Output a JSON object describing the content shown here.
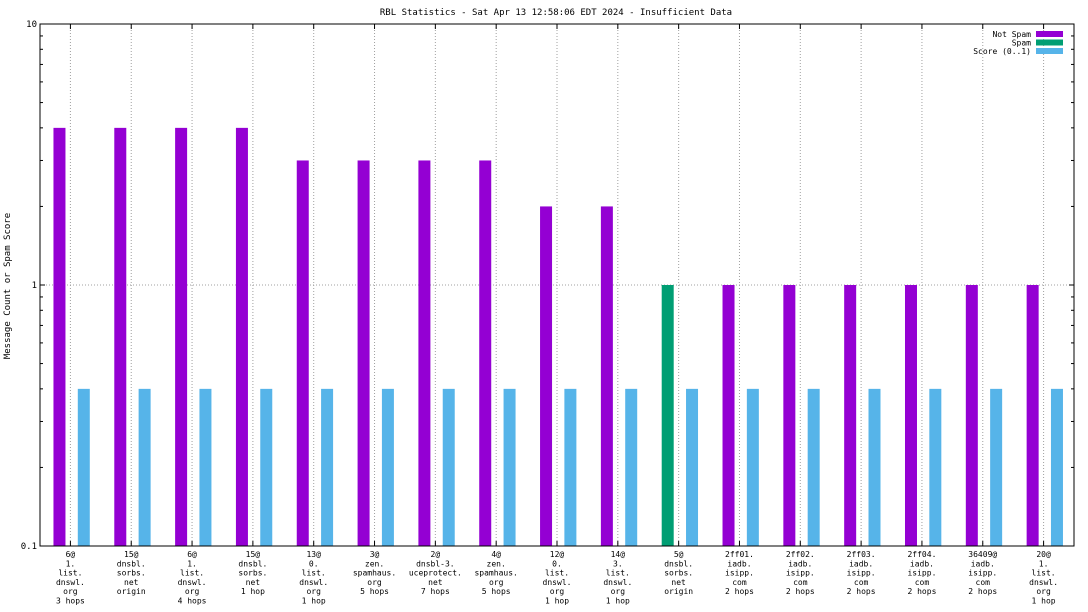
{
  "chart_data": {
    "type": "bar",
    "title": "RBL Statistics - Sat Apr 13 12:58:06 EDT 2024 - Insufficient Data",
    "xlabel": "",
    "ylabel": "Message Count or Spam Score",
    "y_scale": "log",
    "ylim": [
      0.1,
      10
    ],
    "y_ticks": [
      "10",
      "1",
      "0.1"
    ],
    "grid": true,
    "legend_position": "top-right",
    "categories": [
      [
        "6@",
        "1.",
        "list.",
        "dnswl.",
        "org",
        "3 hops"
      ],
      [
        "15@",
        "dnsbl.",
        "sorbs.",
        "net",
        "origin"
      ],
      [
        "6@",
        "1.",
        "list.",
        "dnswl.",
        "org",
        "4 hops"
      ],
      [
        "15@",
        "dnsbl.",
        "sorbs.",
        "net",
        "1 hop"
      ],
      [
        "13@",
        "0.",
        "list.",
        "dnswl.",
        "org",
        "1 hop"
      ],
      [
        "3@",
        "zen.",
        "spamhaus.",
        "org",
        "5 hops"
      ],
      [
        "2@",
        "dnsbl-3.",
        "uceprotect.",
        "net",
        "7 hops"
      ],
      [
        "4@",
        "zen.",
        "spamhaus.",
        "org",
        "5 hops"
      ],
      [
        "12@",
        "0.",
        "list.",
        "dnswl.",
        "org",
        "1 hop"
      ],
      [
        "14@",
        "3.",
        "list.",
        "dnswl.",
        "org",
        "1 hop"
      ],
      [
        "5@",
        "dnsbl.",
        "sorbs.",
        "net",
        "origin"
      ],
      [
        "2ff01.",
        "iadb.",
        "isipp.",
        "com",
        "2 hops"
      ],
      [
        "2ff02.",
        "iadb.",
        "isipp.",
        "com",
        "2 hops"
      ],
      [
        "2ff03.",
        "iadb.",
        "isipp.",
        "com",
        "2 hops"
      ],
      [
        "2ff04.",
        "iadb.",
        "isipp.",
        "com",
        "2 hops"
      ],
      [
        "36409@",
        "iadb.",
        "isipp.",
        "com",
        "2 hops"
      ],
      [
        "20@",
        "1.",
        "list.",
        "dnswl.",
        "org",
        "1 hop"
      ]
    ],
    "series": [
      {
        "name": "Not Spam",
        "color": "#9400d3",
        "values": [
          4,
          4,
          4,
          4,
          3,
          3,
          3,
          3,
          2,
          2,
          null,
          1,
          1,
          1,
          1,
          1,
          1
        ]
      },
      {
        "name": "Spam",
        "color": "#009e73",
        "values": [
          null,
          null,
          null,
          null,
          null,
          null,
          null,
          null,
          null,
          null,
          1,
          null,
          null,
          null,
          null,
          null,
          null
        ]
      },
      {
        "name": "Score (0..1)",
        "color": "#56b4e9",
        "values": [
          0.4,
          0.4,
          0.4,
          0.4,
          0.4,
          0.4,
          0.4,
          0.4,
          0.4,
          0.4,
          0.4,
          0.4,
          0.4,
          0.4,
          0.4,
          0.4,
          0.4
        ]
      }
    ]
  }
}
